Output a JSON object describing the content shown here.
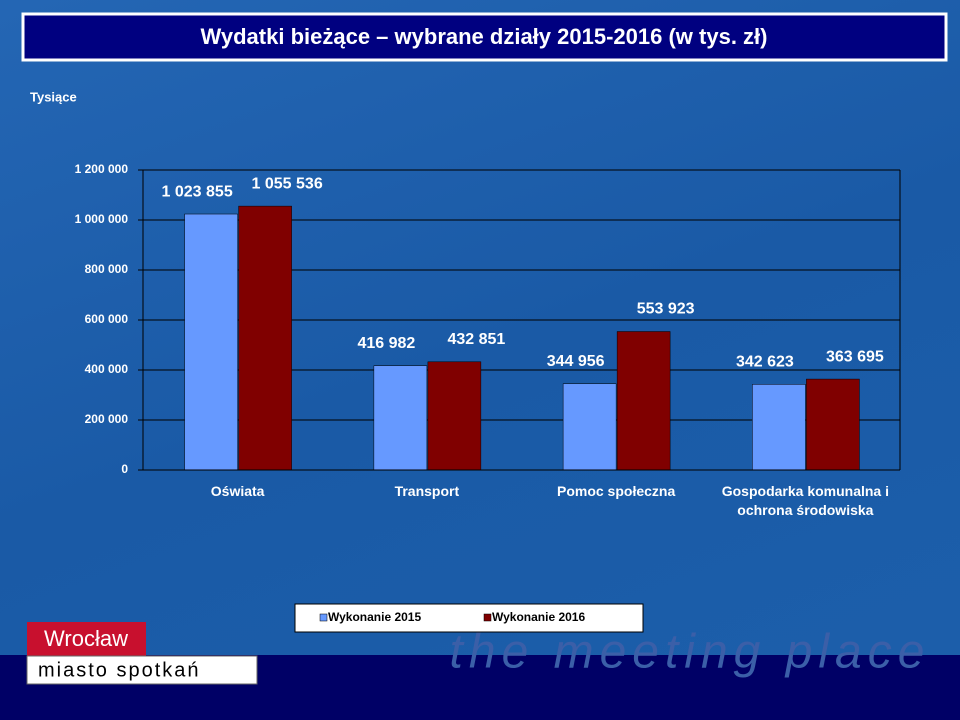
{
  "chart_data": {
    "type": "bar",
    "title": "Wydatki bieżące – wybrane działy 2015-2016 (w tys. zł)",
    "y_axis_label": "Tysiące",
    "categories": [
      "Oświata",
      "Transport",
      "Pomoc społeczna",
      "Gospodarka komunalna i ochrona środowiska"
    ],
    "series": [
      {
        "name": "Wykonanie 2015",
        "color": "#6699ff",
        "values": [
          1023855,
          416982,
          344956,
          342623
        ],
        "value_labels": [
          "1 023 855",
          "416 982",
          "344 956",
          "342 623"
        ]
      },
      {
        "name": "Wykonanie 2016",
        "color": "#800000",
        "values": [
          1055536,
          432851,
          553923,
          363695
        ],
        "value_labels": [
          "1 055 536",
          "432 851",
          "553 923",
          "363 695"
        ]
      }
    ],
    "ylim": [
      0,
      1200000
    ],
    "yticks": [
      0,
      {
        "value": 200000,
        "label": "200 000"
      },
      {
        "value": 400000,
        "label": "400 000"
      },
      {
        "value": 600000,
        "label": "600 000"
      },
      {
        "value": 800000,
        "label": "800 000"
      },
      {
        "value": 1000000,
        "label": "1 000 000"
      },
      {
        "value": 1200000,
        "label": "1 200 000"
      }
    ],
    "grid": true,
    "legend": "bottom"
  },
  "logo": {
    "name": "Wrocław",
    "tagline": "miasto spotkań",
    "slogan": "the meeting place"
  }
}
